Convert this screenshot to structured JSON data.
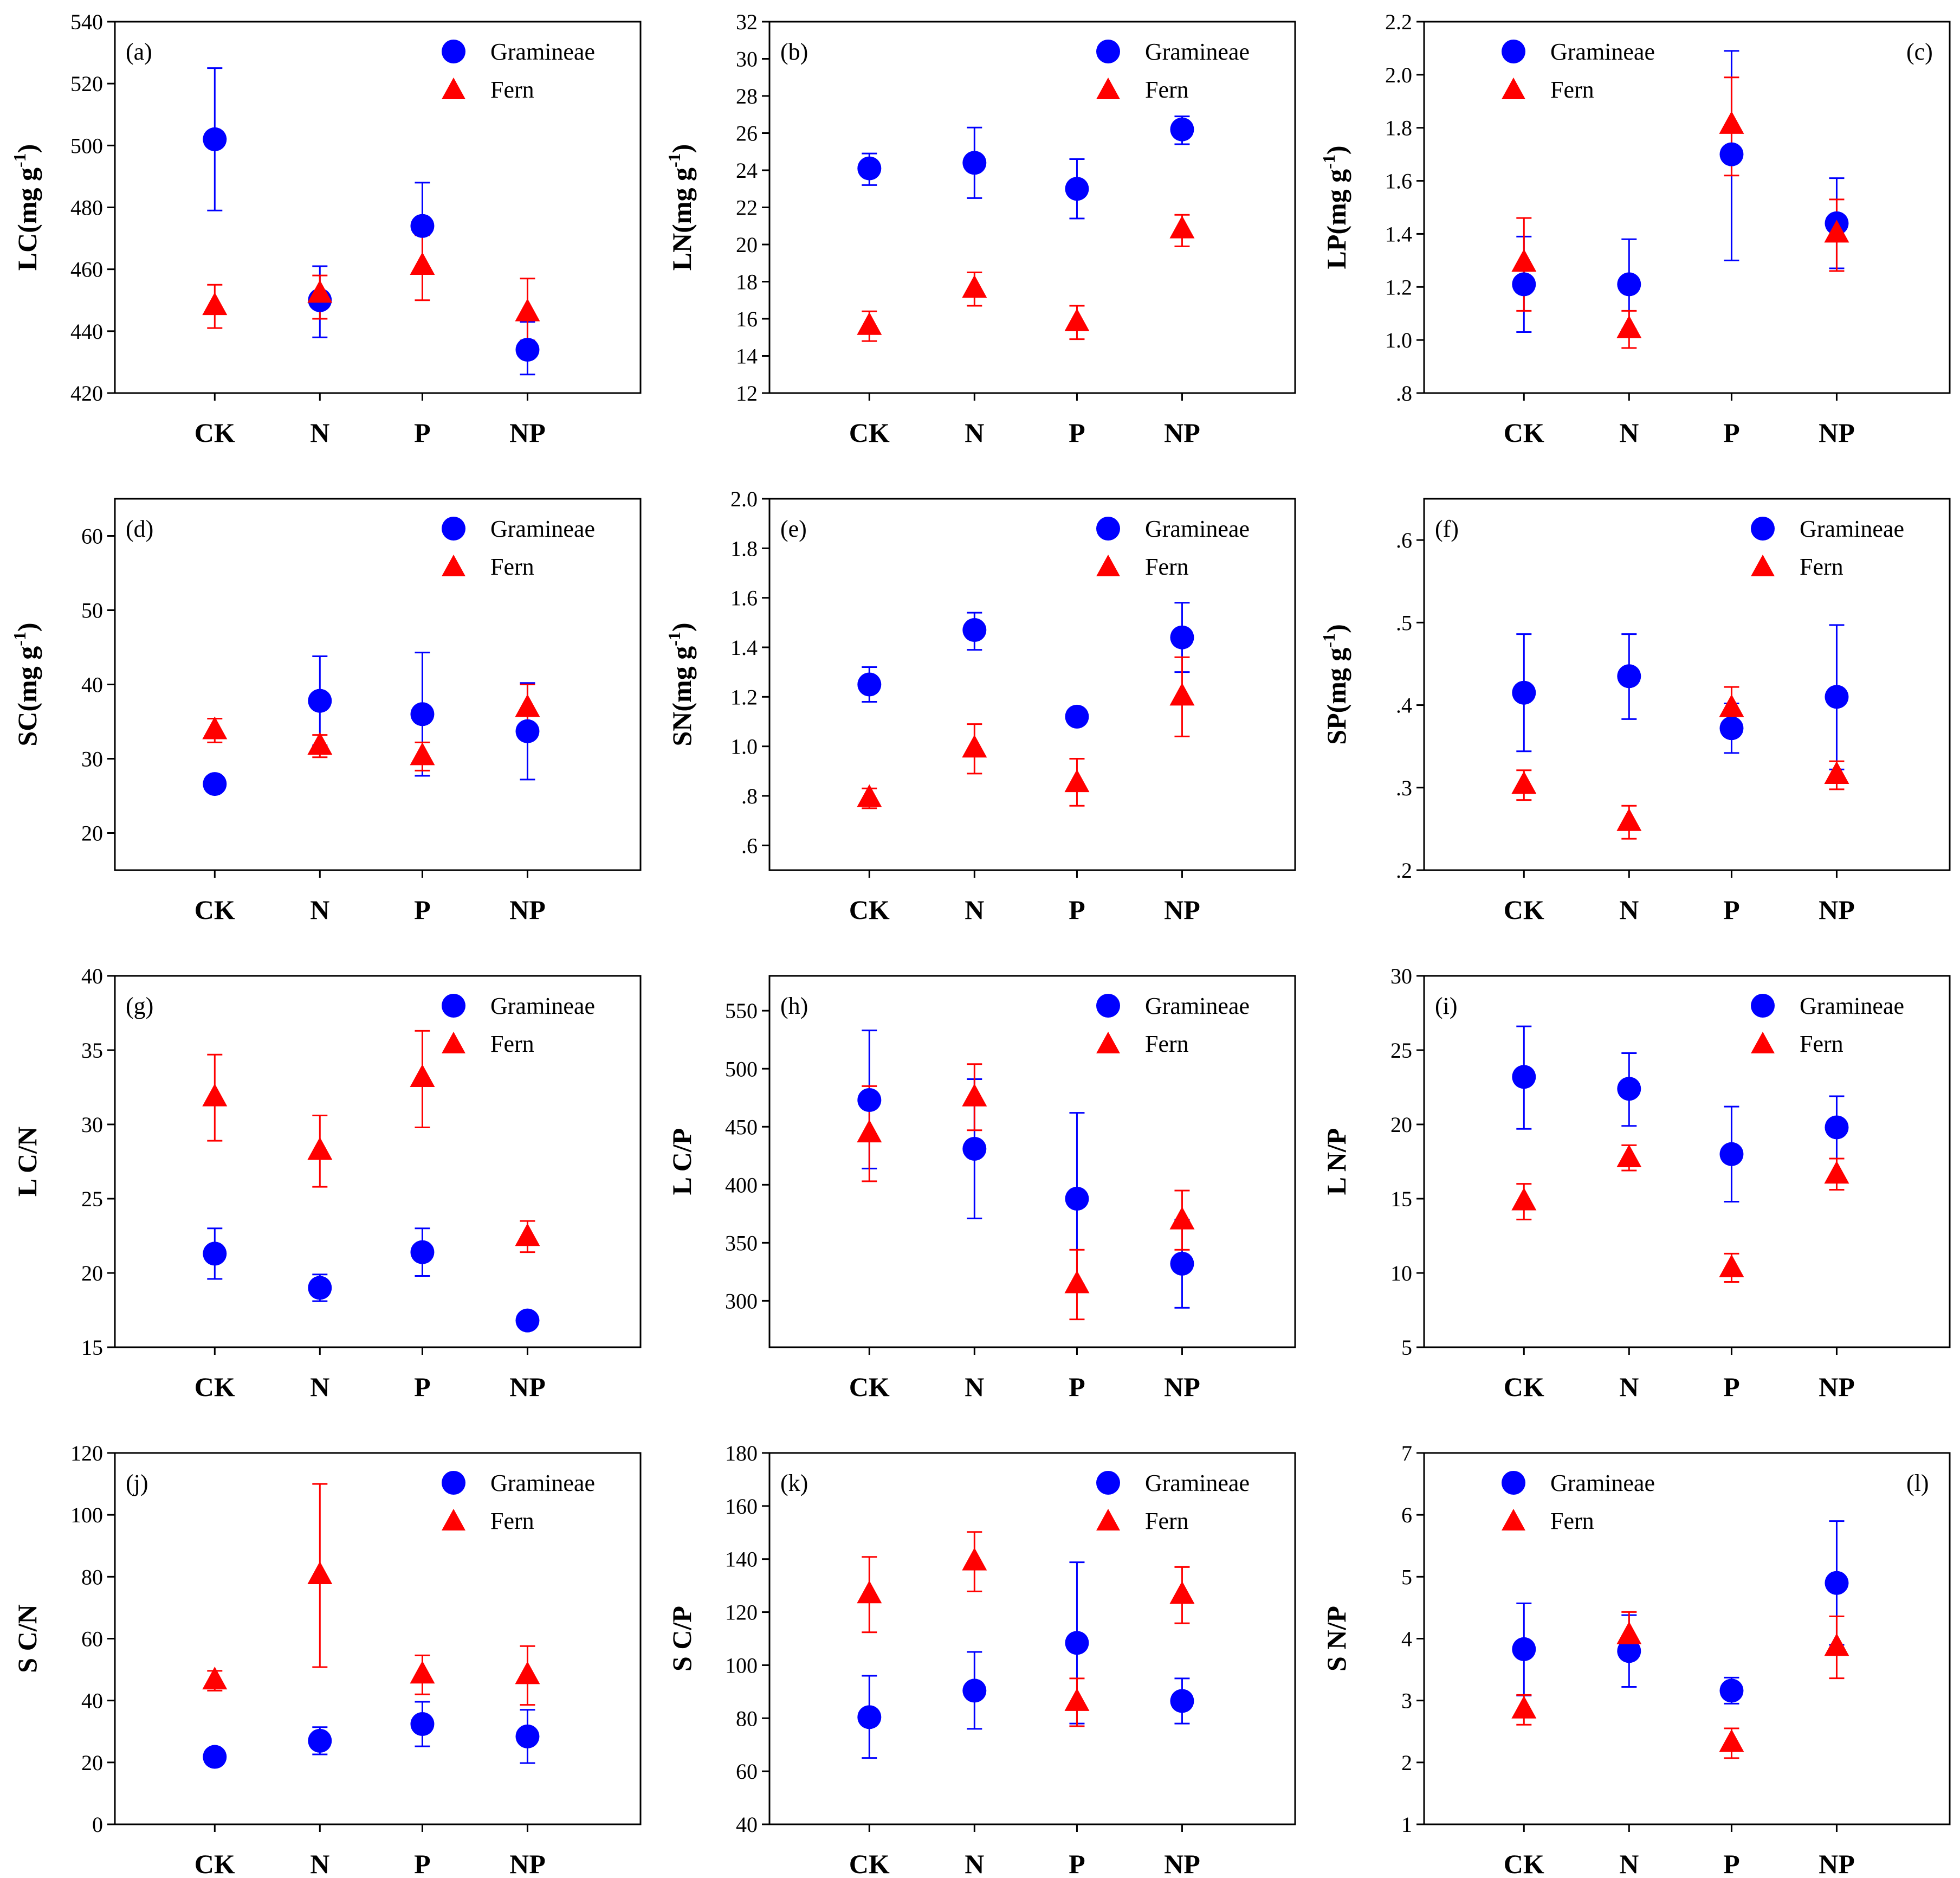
{
  "series_names": [
    "Gramineae",
    "Fern"
  ],
  "colors": {
    "gramineae": "#0000ff",
    "fern": "#ff0000"
  },
  "chart_data": [
    {
      "id": "a",
      "type": "scatter",
      "panel_label": "(a)",
      "ylabel": "LC(mg g",
      "ylabel_sup": "-1",
      "ylabel_close": ")",
      "categories": [
        "CK",
        "N",
        "P",
        "NP"
      ],
      "ylim": [
        420,
        540
      ],
      "yticks": [
        420,
        440,
        460,
        480,
        500,
        520,
        540
      ],
      "ytick_labels": [
        "420",
        "440",
        "460",
        "480",
        "500",
        "520",
        "540"
      ],
      "legend_position": "top-right",
      "series": [
        {
          "name": "Gramineae",
          "values": [
            502,
            450,
            474,
            434
          ],
          "err_low": [
            479,
            438,
            460,
            426
          ],
          "err_high": [
            525,
            461,
            488,
            443
          ]
        },
        {
          "name": "Fern",
          "values": [
            448,
            452,
            461,
            446
          ],
          "err_low": [
            441,
            444,
            450,
            437
          ],
          "err_high": [
            455,
            458,
            471,
            457
          ]
        }
      ]
    },
    {
      "id": "b",
      "type": "scatter",
      "panel_label": "(b)",
      "ylabel": "LN(mg g",
      "ylabel_sup": "-1",
      "ylabel_close": ")",
      "categories": [
        "CK",
        "N",
        "P",
        "NP"
      ],
      "ylim": [
        12,
        32
      ],
      "yticks": [
        12,
        14,
        16,
        18,
        20,
        22,
        24,
        26,
        28,
        30,
        32
      ],
      "ytick_labels": [
        "12",
        "14",
        "16",
        "18",
        "20",
        "22",
        "24",
        "26",
        "28",
        "30",
        "32"
      ],
      "legend_position": "top-right",
      "series": [
        {
          "name": "Gramineae",
          "values": [
            24.1,
            24.4,
            23.0,
            26.2
          ],
          "err_low": [
            23.2,
            22.5,
            21.4,
            25.4
          ],
          "err_high": [
            24.9,
            26.3,
            24.6,
            26.9
          ]
        },
        {
          "name": "Fern",
          "values": [
            15.6,
            17.6,
            15.8,
            20.8
          ],
          "err_low": [
            14.8,
            16.7,
            14.9,
            19.9
          ],
          "err_high": [
            16.4,
            18.5,
            16.7,
            21.6
          ]
        }
      ]
    },
    {
      "id": "c",
      "type": "scatter",
      "panel_label": "(c)",
      "ylabel": "LP(mg g",
      "ylabel_sup": "-1",
      "ylabel_close": ")",
      "categories": [
        "CK",
        "N",
        "P",
        "NP"
      ],
      "ylim": [
        0.8,
        2.2
      ],
      "yticks": [
        0.8,
        1.0,
        1.2,
        1.4,
        1.6,
        1.8,
        2.0,
        2.2
      ],
      "ytick_labels": [
        ".8",
        "1.0",
        "1.2",
        "1.4",
        "1.6",
        "1.8",
        "2.0",
        "2.2"
      ],
      "legend_position": "top-left",
      "series": [
        {
          "name": "Gramineae",
          "values": [
            1.21,
            1.21,
            1.7,
            1.44
          ],
          "err_low": [
            1.03,
            1.04,
            1.3,
            1.27
          ],
          "err_high": [
            1.39,
            1.38,
            2.09,
            1.61
          ]
        },
        {
          "name": "Fern",
          "values": [
            1.29,
            1.04,
            1.81,
            1.4
          ],
          "err_low": [
            1.11,
            0.97,
            1.62,
            1.26
          ],
          "err_high": [
            1.46,
            1.11,
            1.99,
            1.53
          ]
        }
      ]
    },
    {
      "id": "d",
      "type": "scatter",
      "panel_label": "(d)",
      "ylabel": "SC(mg g",
      "ylabel_sup": "-1",
      "ylabel_close": ")",
      "categories": [
        "CK",
        "N",
        "P",
        "NP"
      ],
      "ylim": [
        15,
        65
      ],
      "yticks": [
        20,
        30,
        40,
        50,
        60
      ],
      "ytick_labels": [
        "20",
        "30",
        "40",
        "50",
        "60"
      ],
      "legend_position": "top-right",
      "series": [
        {
          "name": "Gramineae",
          "values": [
            26.6,
            37.8,
            36.0,
            33.7
          ],
          "err_low": [
            26.0,
            31.8,
            27.7,
            27.2
          ],
          "err_high": [
            27.2,
            43.8,
            44.3,
            40.2
          ]
        },
        {
          "name": "Fern",
          "values": [
            33.8,
            31.7,
            30.3,
            36.8
          ],
          "err_low": [
            32.2,
            30.2,
            28.4,
            33.6
          ],
          "err_high": [
            35.4,
            33.2,
            32.2,
            40.0
          ]
        }
      ]
    },
    {
      "id": "e",
      "type": "scatter",
      "panel_label": "(e)",
      "ylabel": "SN(mg g",
      "ylabel_sup": "-1",
      "ylabel_close": ")",
      "categories": [
        "CK",
        "N",
        "P",
        "NP"
      ],
      "ylim": [
        0.5,
        2.0
      ],
      "yticks": [
        0.6,
        0.8,
        1.0,
        1.2,
        1.4,
        1.6,
        1.8,
        2.0
      ],
      "ytick_labels": [
        ".6",
        ".8",
        "1.0",
        "1.2",
        "1.4",
        "1.6",
        "1.8",
        "2.0"
      ],
      "legend_position": "top-right",
      "series": [
        {
          "name": "Gramineae",
          "values": [
            1.25,
            1.47,
            1.12,
            1.44
          ],
          "err_low": [
            1.18,
            1.39,
            1.1,
            1.3
          ],
          "err_high": [
            1.32,
            1.54,
            1.14,
            1.58
          ]
        },
        {
          "name": "Fern",
          "values": [
            0.79,
            0.99,
            0.85,
            1.2
          ],
          "err_low": [
            0.75,
            0.89,
            0.76,
            1.04
          ],
          "err_high": [
            0.83,
            1.09,
            0.95,
            1.36
          ]
        }
      ]
    },
    {
      "id": "f",
      "type": "scatter",
      "panel_label": "(f)",
      "ylabel": "SP(mg g",
      "ylabel_sup": "-1",
      "ylabel_close": ")",
      "categories": [
        "CK",
        "N",
        "P",
        "NP"
      ],
      "ylim": [
        0.2,
        0.65
      ],
      "yticks": [
        0.2,
        0.3,
        0.4,
        0.5,
        0.6
      ],
      "ytick_labels": [
        ".2",
        ".3",
        ".4",
        ".5",
        ".6"
      ],
      "legend_position": "top-right",
      "series": [
        {
          "name": "Gramineae",
          "values": [
            0.415,
            0.435,
            0.372,
            0.41
          ],
          "err_low": [
            0.344,
            0.383,
            0.342,
            0.322
          ],
          "err_high": [
            0.486,
            0.486,
            0.402,
            0.497
          ]
        },
        {
          "name": "Fern",
          "values": [
            0.303,
            0.258,
            0.396,
            0.315
          ],
          "err_low": [
            0.285,
            0.238,
            0.37,
            0.298
          ],
          "err_high": [
            0.321,
            0.278,
            0.422,
            0.332
          ]
        }
      ]
    },
    {
      "id": "g",
      "type": "scatter",
      "panel_label": "(g)",
      "ylabel": "L C/N",
      "ylabel_sup": "",
      "ylabel_close": "",
      "categories": [
        "CK",
        "N",
        "P",
        "NP"
      ],
      "ylim": [
        15,
        40
      ],
      "yticks": [
        15,
        20,
        25,
        30,
        35,
        40
      ],
      "ytick_labels": [
        "15",
        "20",
        "25",
        "30",
        "35",
        "40"
      ],
      "legend_position": "top-right",
      "series": [
        {
          "name": "Gramineae",
          "values": [
            21.3,
            19.0,
            21.4,
            16.8
          ],
          "err_low": [
            19.6,
            18.1,
            19.8,
            16.5
          ],
          "err_high": [
            23.0,
            19.9,
            23.0,
            17.1
          ]
        },
        {
          "name": "Fern",
          "values": [
            31.8,
            28.2,
            33.1,
            22.4
          ],
          "err_low": [
            28.9,
            25.8,
            29.8,
            21.4
          ],
          "err_high": [
            34.7,
            30.6,
            36.3,
            23.5
          ]
        }
      ]
    },
    {
      "id": "h",
      "type": "scatter",
      "panel_label": "(h)",
      "ylabel": "L C/P",
      "ylabel_sup": "",
      "ylabel_close": "",
      "categories": [
        "CK",
        "N",
        "P",
        "NP"
      ],
      "ylim": [
        260,
        580
      ],
      "yticks": [
        300,
        350,
        400,
        450,
        500,
        550
      ],
      "ytick_labels": [
        "300",
        "350",
        "400",
        "450",
        "500",
        "550"
      ],
      "legend_position": "top-right",
      "series": [
        {
          "name": "Gramineae",
          "values": [
            473,
            431,
            388,
            332
          ],
          "err_low": [
            414,
            371,
            314,
            294
          ],
          "err_high": [
            533,
            491,
            462,
            370
          ]
        },
        {
          "name": "Fern",
          "values": [
            444,
            475,
            314,
            369
          ],
          "err_low": [
            403,
            447,
            284,
            344
          ],
          "err_high": [
            485,
            504,
            344,
            395
          ]
        }
      ]
    },
    {
      "id": "i",
      "type": "scatter",
      "panel_label": "(i)",
      "ylabel": "L N/P",
      "ylabel_sup": "",
      "ylabel_close": "",
      "categories": [
        "CK",
        "N",
        "P",
        "NP"
      ],
      "ylim": [
        5,
        30
      ],
      "yticks": [
        5,
        10,
        15,
        20,
        25,
        30
      ],
      "ytick_labels": [
        "5",
        "10",
        "15",
        "20",
        "25",
        "30"
      ],
      "legend_position": "top-right",
      "series": [
        {
          "name": "Gramineae",
          "values": [
            23.2,
            22.4,
            18.0,
            19.8
          ],
          "err_low": [
            19.7,
            19.9,
            14.8,
            17.7
          ],
          "err_high": [
            26.6,
            24.8,
            21.2,
            21.9
          ]
        },
        {
          "name": "Fern",
          "values": [
            14.8,
            17.7,
            10.3,
            16.6
          ],
          "err_low": [
            13.6,
            16.9,
            9.4,
            15.6
          ],
          "err_high": [
            16.0,
            18.6,
            11.3,
            17.7
          ]
        }
      ]
    },
    {
      "id": "j",
      "type": "scatter",
      "panel_label": "(j)",
      "ylabel": "S C/N",
      "ylabel_sup": "",
      "ylabel_close": "",
      "categories": [
        "CK",
        "N",
        "P",
        "NP"
      ],
      "ylim": [
        0,
        120
      ],
      "yticks": [
        0,
        20,
        40,
        60,
        80,
        100,
        120
      ],
      "ytick_labels": [
        "0",
        "20",
        "40",
        "60",
        "80",
        "100",
        "120"
      ],
      "legend_position": "top-right",
      "series": [
        {
          "name": "Gramineae",
          "values": [
            21.8,
            27.0,
            32.4,
            28.4
          ],
          "err_low": [
            21.4,
            22.6,
            25.2,
            19.8
          ],
          "err_high": [
            22.2,
            31.4,
            39.6,
            37.0
          ]
        },
        {
          "name": "Fern",
          "values": [
            46.4,
            80.4,
            48.3,
            48.1
          ],
          "err_low": [
            43.2,
            50.8,
            42.0,
            38.6
          ],
          "err_high": [
            49.6,
            110.0,
            54.6,
            57.6
          ]
        }
      ]
    },
    {
      "id": "k",
      "type": "scatter",
      "panel_label": "(k)",
      "ylabel": "S C/P",
      "ylabel_sup": "",
      "ylabel_close": "",
      "categories": [
        "CK",
        "N",
        "P",
        "NP"
      ],
      "ylim": [
        40,
        180
      ],
      "yticks": [
        40,
        60,
        80,
        100,
        120,
        140,
        160,
        180
      ],
      "ytick_labels": [
        "40",
        "60",
        "80",
        "100",
        "120",
        "140",
        "160",
        "180"
      ],
      "legend_position": "top-right",
      "series": [
        {
          "name": "Gramineae",
          "values": [
            80.4,
            90.4,
            108.4,
            86.5
          ],
          "err_low": [
            65.0,
            76.0,
            78.0,
            78.0
          ],
          "err_high": [
            96.0,
            105.0,
            138.8,
            95.0
          ]
        },
        {
          "name": "Fern",
          "values": [
            126.6,
            139.0,
            86.0,
            126.4
          ],
          "err_low": [
            112.4,
            127.8,
            77.0,
            115.8
          ],
          "err_high": [
            140.8,
            150.2,
            95.0,
            137.0
          ]
        }
      ]
    },
    {
      "id": "l",
      "type": "scatter",
      "panel_label": "(l)",
      "ylabel": "S N/P",
      "ylabel_sup": "",
      "ylabel_close": "",
      "categories": [
        "CK",
        "N",
        "P",
        "NP"
      ],
      "ylim": [
        1,
        7
      ],
      "yticks": [
        1,
        2,
        3,
        4,
        5,
        6,
        7
      ],
      "ytick_labels": [
        "1",
        "2",
        "3",
        "4",
        "5",
        "6",
        "7"
      ],
      "legend_position": "top-left",
      "series": [
        {
          "name": "Gramineae",
          "values": [
            3.83,
            3.8,
            3.16,
            4.9
          ],
          "err_low": [
            3.08,
            3.22,
            2.95,
            3.9
          ],
          "err_high": [
            4.57,
            4.38,
            3.37,
            5.9
          ]
        },
        {
          "name": "Fern",
          "values": [
            2.85,
            4.05,
            2.31,
            3.86
          ],
          "err_low": [
            2.61,
            3.67,
            2.07,
            3.36
          ],
          "err_high": [
            3.09,
            4.43,
            2.55,
            4.36
          ]
        }
      ]
    }
  ]
}
